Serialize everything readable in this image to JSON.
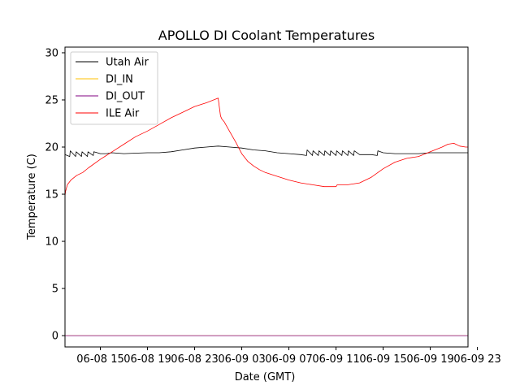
{
  "chart_data": {
    "type": "line",
    "title": "APOLLO DI Coolant Temperatures",
    "xlabel": "Date (GMT)",
    "ylabel": "Temperature (C)",
    "xlim": [
      12.0,
      46.2
    ],
    "ylim": [
      -1.2,
      30.6
    ],
    "x_units": "hours since 06-08 00:00 GMT",
    "yticks": [
      0,
      5,
      10,
      15,
      20,
      25,
      30
    ],
    "xticks": [
      {
        "x": 15,
        "label": "06-08 15"
      },
      {
        "x": 19,
        "label": "06-08 19"
      },
      {
        "x": 23,
        "label": "06-08 23"
      },
      {
        "x": 27,
        "label": "06-09 03"
      },
      {
        "x": 31,
        "label": "06-09 07"
      },
      {
        "x": 35,
        "label": "06-09 11"
      },
      {
        "x": 39,
        "label": "06-09 15"
      },
      {
        "x": 43,
        "label": "06-09 19"
      },
      {
        "x": 47,
        "label": "06-09 23"
      }
    ],
    "legend_position": "top-left",
    "series": [
      {
        "name": "Utah Air",
        "color": "#000000",
        "x": [
          12.0,
          12.4,
          12.45,
          12.9,
          12.95,
          13.4,
          13.45,
          13.9,
          13.95,
          14.4,
          14.45,
          15.0,
          15.5,
          16.0,
          17.0,
          18.0,
          19.0,
          20.0,
          21.0,
          22.0,
          23.0,
          24.0,
          25.0,
          26.0,
          27.0,
          28.0,
          29.0,
          30.0,
          31.0,
          32.0,
          32.5,
          32.55,
          33.0,
          33.05,
          33.5,
          33.55,
          34.0,
          34.05,
          34.5,
          34.55,
          35.0,
          35.05,
          35.5,
          35.55,
          36.0,
          36.05,
          36.5,
          36.55,
          37.0,
          38.0,
          38.5,
          38.55,
          39.0,
          40.0,
          41.0,
          42.0,
          43.0,
          44.0,
          45.0,
          46.2
        ],
        "y": [
          19.2,
          19.0,
          19.6,
          19.0,
          19.5,
          19.0,
          19.5,
          19.0,
          19.5,
          19.1,
          19.5,
          19.3,
          19.3,
          19.4,
          19.3,
          19.35,
          19.4,
          19.4,
          19.5,
          19.7,
          19.9,
          20.0,
          20.1,
          20.0,
          19.9,
          19.7,
          19.6,
          19.4,
          19.3,
          19.2,
          19.1,
          19.7,
          19.1,
          19.6,
          19.1,
          19.6,
          19.1,
          19.6,
          19.1,
          19.6,
          19.1,
          19.6,
          19.1,
          19.6,
          19.1,
          19.6,
          19.1,
          19.6,
          19.2,
          19.2,
          19.1,
          19.6,
          19.4,
          19.3,
          19.3,
          19.3,
          19.4,
          19.4,
          19.4,
          19.4
        ]
      },
      {
        "name": "DI_IN",
        "color": "#ffc000",
        "x": [
          12.0,
          46.2
        ],
        "y": [
          0,
          0
        ]
      },
      {
        "name": "DI_OUT",
        "color": "#800080",
        "x": [
          12.0,
          46.2
        ],
        "y": [
          0,
          0
        ]
      },
      {
        "name": "ILE Air",
        "color": "#ff0000",
        "x": [
          12.0,
          12.05,
          12.2,
          12.5,
          13.0,
          13.5,
          14.0,
          15.0,
          16.0,
          17.0,
          18.0,
          19.0,
          20.0,
          21.0,
          22.0,
          23.0,
          24.0,
          25.0,
          25.2,
          25.3,
          25.5,
          26.0,
          26.5,
          27.0,
          27.5,
          28.0,
          28.5,
          29.0,
          30.0,
          31.0,
          32.0,
          33.0,
          34.0,
          35.0,
          35.1,
          36.0,
          37.0,
          38.0,
          39.0,
          40.0,
          41.0,
          42.0,
          43.0,
          44.0,
          44.5,
          45.0,
          45.5,
          46.0,
          46.2
        ],
        "y": [
          14.8,
          15.3,
          16.0,
          16.5,
          17.0,
          17.3,
          17.8,
          18.7,
          19.5,
          20.3,
          21.1,
          21.7,
          22.4,
          23.1,
          23.7,
          24.3,
          24.7,
          25.2,
          23.3,
          23.0,
          22.7,
          21.6,
          20.5,
          19.3,
          18.5,
          18.0,
          17.6,
          17.3,
          16.9,
          16.5,
          16.2,
          16.0,
          15.8,
          15.8,
          16.0,
          16.0,
          16.2,
          16.8,
          17.7,
          18.4,
          18.8,
          19.0,
          19.5,
          20.0,
          20.3,
          20.4,
          20.1,
          20.0,
          20.0
        ]
      }
    ]
  }
}
